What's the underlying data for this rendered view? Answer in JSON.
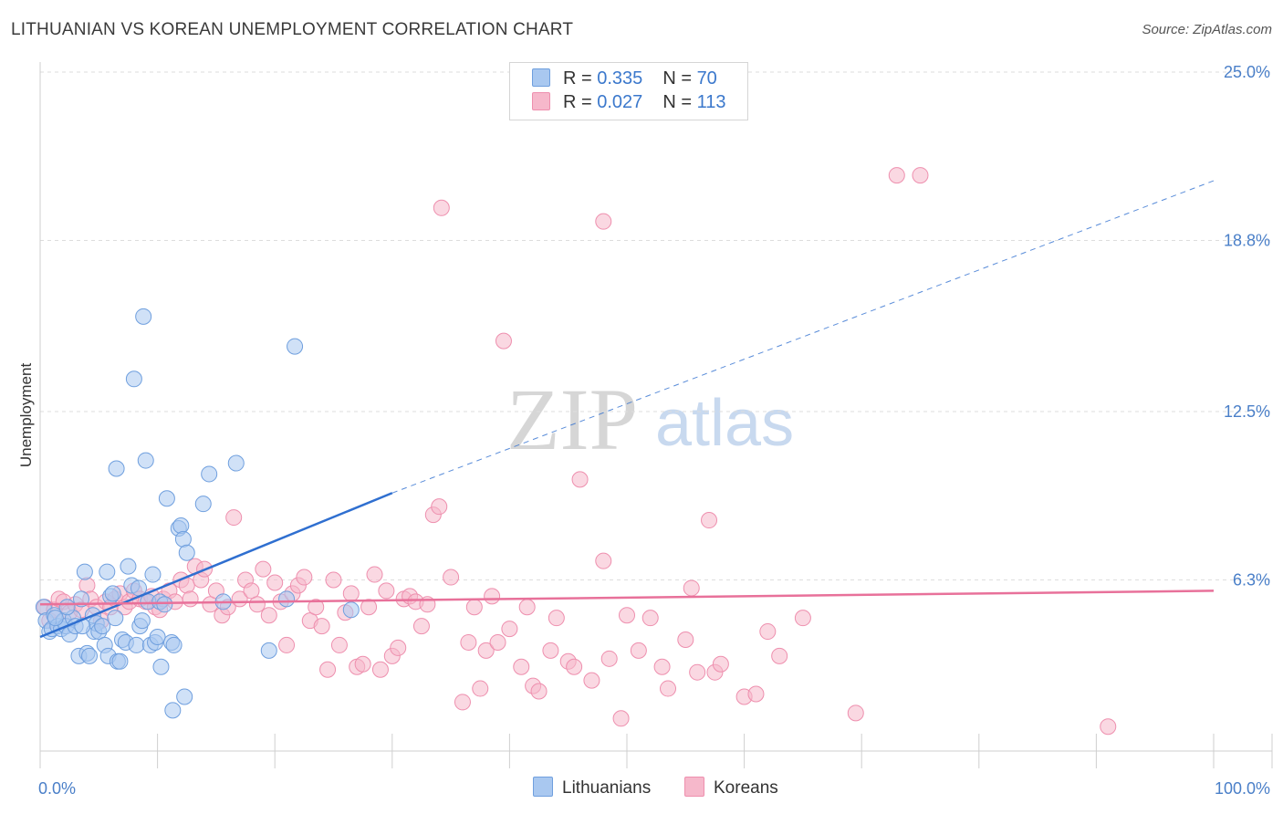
{
  "title": "LITHUANIAN VS KOREAN UNEMPLOYMENT CORRELATION CHART",
  "source": "Source: ZipAtlas.com",
  "watermark": {
    "zip": "ZIP",
    "atlas": "atlas"
  },
  "legend_top": [
    {
      "r_label": "R = ",
      "r_value": "0.335",
      "n_label": "N = ",
      "n_value": "70"
    },
    {
      "r_label": "R = ",
      "r_value": "0.027",
      "n_label": "N = ",
      "n_value": "113"
    }
  ],
  "colors": {
    "lithuanian_fill": "#a9c8f0",
    "lithuanian_stroke": "#6f9fde",
    "lithuanian_line": "#2f6fd0",
    "korean_fill": "#f6b8cb",
    "korean_stroke": "#ee8fae",
    "korean_line": "#e8719a",
    "grid": "#dddddd",
    "axis_text": "#4a7fc8"
  },
  "chart_data": {
    "type": "scatter",
    "xlabel": "",
    "ylabel": "Unemployment",
    "xlim": [
      0,
      100
    ],
    "ylim": [
      0,
      25
    ],
    "x_tick_labels": [
      "0.0%",
      "100.0%"
    ],
    "y_ticks": [
      6.3,
      12.5,
      18.8,
      25.0
    ],
    "y_tick_labels": [
      "6.3%",
      "12.5%",
      "18.8%",
      "25.0%"
    ],
    "x_minor_ticks": [
      10,
      20,
      30,
      40,
      50,
      60,
      70,
      80,
      90,
      100
    ],
    "legend": [
      "Lithuanians",
      "Koreans"
    ],
    "series": [
      {
        "name": "Lithuanians",
        "r": 0.335,
        "n": 70,
        "trend": {
          "x0": 0,
          "y0": 4.2,
          "x1": 30,
          "y1": 9.5,
          "x_dash_end": 100,
          "y_dash_end": 21.0
        },
        "points": [
          [
            0.3,
            5.3
          ],
          [
            0.5,
            4.8
          ],
          [
            0.8,
            4.4
          ],
          [
            1.0,
            4.5
          ],
          [
            1.2,
            5.0
          ],
          [
            1.5,
            4.6
          ],
          [
            1.8,
            4.5
          ],
          [
            2.0,
            4.8
          ],
          [
            2.2,
            4.6
          ],
          [
            2.5,
            4.3
          ],
          [
            2.8,
            4.9
          ],
          [
            3.0,
            4.6
          ],
          [
            3.3,
            3.5
          ],
          [
            3.5,
            5.6
          ],
          [
            3.8,
            6.6
          ],
          [
            4.0,
            3.6
          ],
          [
            4.2,
            3.5
          ],
          [
            4.5,
            5.0
          ],
          [
            4.6,
            4.4
          ],
          [
            4.8,
            4.7
          ],
          [
            5.0,
            4.4
          ],
          [
            5.3,
            4.6
          ],
          [
            5.5,
            3.9
          ],
          [
            5.7,
            6.6
          ],
          [
            5.8,
            3.5
          ],
          [
            6.0,
            5.7
          ],
          [
            6.2,
            5.8
          ],
          [
            6.4,
            4.9
          ],
          [
            6.6,
            3.3
          ],
          [
            6.8,
            3.3
          ],
          [
            7.0,
            4.1
          ],
          [
            7.3,
            4.0
          ],
          [
            7.5,
            6.8
          ],
          [
            7.8,
            6.1
          ],
          [
            8.0,
            13.7
          ],
          [
            8.2,
            3.9
          ],
          [
            8.4,
            6.0
          ],
          [
            8.5,
            4.6
          ],
          [
            8.7,
            4.8
          ],
          [
            8.8,
            16.0
          ],
          [
            9.0,
            10.7
          ],
          [
            9.2,
            5.5
          ],
          [
            9.4,
            3.9
          ],
          [
            9.6,
            6.5
          ],
          [
            9.8,
            4.0
          ],
          [
            10.0,
            4.2
          ],
          [
            10.2,
            5.5
          ],
          [
            10.3,
            3.1
          ],
          [
            10.6,
            5.4
          ],
          [
            10.8,
            9.3
          ],
          [
            11.2,
            4.0
          ],
          [
            11.4,
            3.9
          ],
          [
            11.8,
            8.2
          ],
          [
            12.0,
            8.3
          ],
          [
            12.2,
            7.8
          ],
          [
            12.3,
            2.0
          ],
          [
            12.5,
            7.3
          ],
          [
            11.3,
            1.5
          ],
          [
            13.9,
            9.1
          ],
          [
            14.4,
            10.2
          ],
          [
            15.6,
            5.5
          ],
          [
            16.7,
            10.6
          ],
          [
            19.5,
            3.7
          ],
          [
            21.0,
            5.6
          ],
          [
            21.7,
            14.9
          ],
          [
            26.5,
            5.2
          ],
          [
            6.5,
            10.4
          ],
          [
            1.3,
            4.9
          ],
          [
            2.3,
            5.3
          ],
          [
            3.6,
            4.6
          ]
        ]
      },
      {
        "name": "Koreans",
        "r": 0.027,
        "n": 113,
        "trend": {
          "x0": 0,
          "y0": 5.4,
          "x1": 100,
          "y1": 5.9
        },
        "points": [
          [
            0.4,
            5.3
          ],
          [
            0.8,
            4.8
          ],
          [
            1.2,
            5.2
          ],
          [
            1.6,
            5.6
          ],
          [
            2.0,
            5.5
          ],
          [
            2.5,
            5.1
          ],
          [
            3.0,
            5.4
          ],
          [
            3.5,
            5.2
          ],
          [
            4.0,
            6.1
          ],
          [
            4.3,
            5.6
          ],
          [
            4.8,
            5.3
          ],
          [
            5.2,
            4.8
          ],
          [
            5.6,
            5.5
          ],
          [
            6.0,
            5.3
          ],
          [
            6.4,
            5.6
          ],
          [
            6.8,
            5.8
          ],
          [
            7.2,
            5.3
          ],
          [
            7.6,
            5.5
          ],
          [
            8.0,
            5.9
          ],
          [
            8.5,
            5.6
          ],
          [
            9.0,
            5.5
          ],
          [
            9.5,
            5.7
          ],
          [
            9.8,
            5.3
          ],
          [
            10.2,
            5.2
          ],
          [
            10.5,
            5.6
          ],
          [
            11.0,
            5.9
          ],
          [
            11.5,
            5.5
          ],
          [
            12.0,
            6.3
          ],
          [
            12.5,
            6.1
          ],
          [
            12.8,
            5.6
          ],
          [
            13.2,
            6.8
          ],
          [
            13.7,
            6.3
          ],
          [
            14.0,
            6.7
          ],
          [
            14.5,
            5.4
          ],
          [
            15.0,
            5.9
          ],
          [
            15.5,
            5.0
          ],
          [
            16.0,
            5.3
          ],
          [
            16.5,
            8.6
          ],
          [
            17.0,
            5.6
          ],
          [
            17.5,
            6.3
          ],
          [
            18.0,
            5.9
          ],
          [
            18.5,
            5.4
          ],
          [
            19.0,
            6.7
          ],
          [
            19.5,
            5.0
          ],
          [
            20.0,
            6.2
          ],
          [
            20.5,
            5.5
          ],
          [
            21.0,
            3.9
          ],
          [
            21.5,
            5.8
          ],
          [
            22.0,
            6.1
          ],
          [
            22.5,
            6.4
          ],
          [
            23.0,
            4.8
          ],
          [
            23.5,
            5.3
          ],
          [
            24.0,
            4.6
          ],
          [
            24.5,
            3.0
          ],
          [
            25.0,
            6.3
          ],
          [
            25.5,
            3.9
          ],
          [
            26.0,
            5.1
          ],
          [
            26.5,
            5.8
          ],
          [
            27.0,
            3.1
          ],
          [
            27.5,
            3.2
          ],
          [
            28.0,
            5.3
          ],
          [
            28.5,
            6.5
          ],
          [
            29.0,
            3.0
          ],
          [
            29.5,
            5.9
          ],
          [
            30.0,
            3.5
          ],
          [
            30.5,
            3.8
          ],
          [
            31.0,
            5.6
          ],
          [
            31.5,
            5.7
          ],
          [
            32.0,
            5.5
          ],
          [
            32.5,
            4.6
          ],
          [
            33.0,
            5.4
          ],
          [
            33.5,
            8.7
          ],
          [
            34.0,
            9.0
          ],
          [
            34.2,
            20.0
          ],
          [
            35.0,
            6.4
          ],
          [
            36.0,
            1.8
          ],
          [
            36.5,
            4.0
          ],
          [
            37.0,
            5.3
          ],
          [
            37.5,
            2.3
          ],
          [
            38.0,
            3.7
          ],
          [
            38.5,
            5.7
          ],
          [
            39.0,
            4.0
          ],
          [
            39.5,
            15.1
          ],
          [
            40.0,
            4.5
          ],
          [
            41.0,
            3.1
          ],
          [
            41.5,
            5.3
          ],
          [
            42.0,
            2.4
          ],
          [
            42.5,
            2.2
          ],
          [
            43.5,
            3.7
          ],
          [
            44.0,
            4.9
          ],
          [
            45.0,
            3.3
          ],
          [
            45.5,
            3.1
          ],
          [
            46.0,
            10.0
          ],
          [
            47.0,
            2.6
          ],
          [
            48.0,
            7.0
          ],
          [
            48.5,
            3.4
          ],
          [
            49.5,
            1.2
          ],
          [
            50.0,
            5.0
          ],
          [
            51.0,
            3.7
          ],
          [
            52.0,
            4.9
          ],
          [
            53.0,
            3.1
          ],
          [
            53.5,
            2.3
          ],
          [
            55.0,
            4.1
          ],
          [
            56.0,
            2.9
          ],
          [
            57.0,
            8.5
          ],
          [
            57.5,
            2.9
          ],
          [
            58.0,
            3.2
          ],
          [
            60.0,
            2.0
          ],
          [
            61.0,
            2.1
          ],
          [
            62.0,
            4.4
          ],
          [
            63.0,
            3.5
          ],
          [
            65.0,
            4.9
          ],
          [
            69.5,
            1.4
          ],
          [
            73.0,
            21.2
          ],
          [
            75.0,
            21.2
          ],
          [
            91.0,
            0.9
          ],
          [
            55.5,
            6.0
          ],
          [
            48.0,
            19.5
          ]
        ]
      }
    ]
  }
}
